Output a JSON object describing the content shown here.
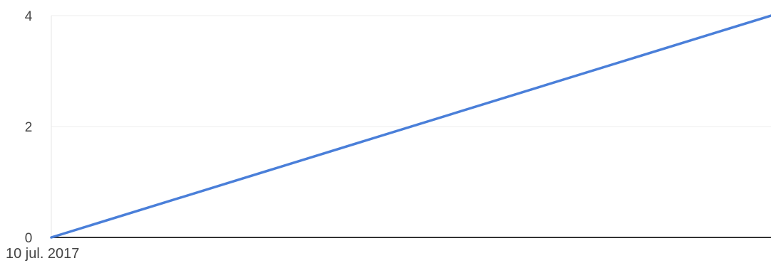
{
  "chart_data": {
    "type": "line",
    "title": "",
    "xlabel": "",
    "ylabel": "",
    "x_tick_labels": [
      "10 jul. 2017"
    ],
    "y_ticks": [
      0,
      2,
      4
    ],
    "ylim": [
      0,
      4
    ],
    "grid": true,
    "series": [
      {
        "color": "#4a7fd9",
        "values": [
          0,
          4
        ]
      }
    ]
  }
}
